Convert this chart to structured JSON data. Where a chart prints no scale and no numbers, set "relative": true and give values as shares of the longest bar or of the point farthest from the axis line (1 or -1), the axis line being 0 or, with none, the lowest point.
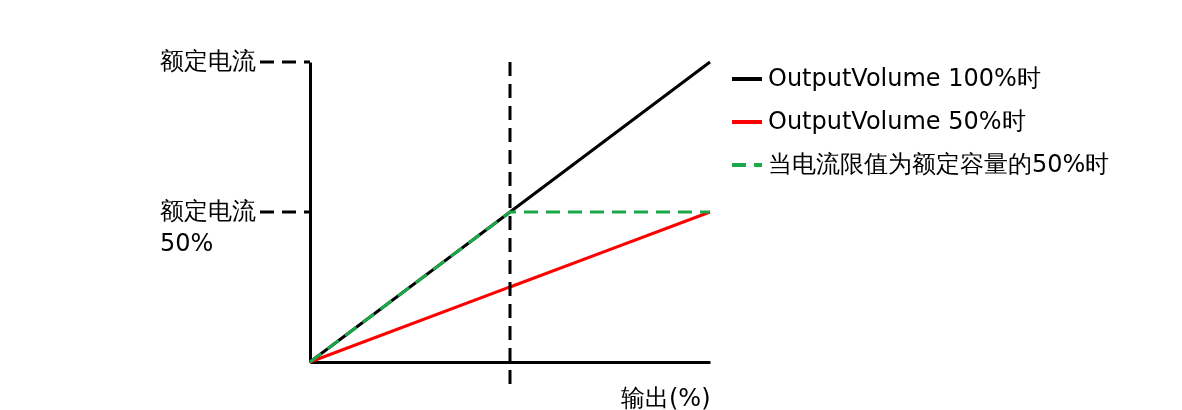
{
  "chart_data": {
    "type": "line",
    "xlabel": "输出(%)",
    "categories": [
      null,
      null,
      null
    ],
    "relative": true,
    "grid": false,
    "legend": "right",
    "marker": "none",
    "series": [
      {
        "name": "OutputVolume 100%时",
        "color": "#000000",
        "values": [
          0,
          0.5,
          1
        ],
        "line_style": "solid"
      },
      {
        "name": "OutputVolume 50%时",
        "color": "#ff0000",
        "values": [
          0,
          0.25,
          0.5
        ],
        "line_style": "solid"
      },
      {
        "name": "当电流限值为额定容量的50%时",
        "color": "#1aa84a",
        "values": [
          0,
          0.5,
          0.5
        ],
        "line_style": "dashed"
      }
    ],
    "ref_lines": [
      {
        "axis": "y",
        "value": 1,
        "label": "额定电流",
        "color": "#000000",
        "line_style": "dashed"
      },
      {
        "axis": "y",
        "value": 0.5,
        "label": "额定电流 50%",
        "color": "#000000",
        "line_style": "dashed"
      }
    ]
  }
}
